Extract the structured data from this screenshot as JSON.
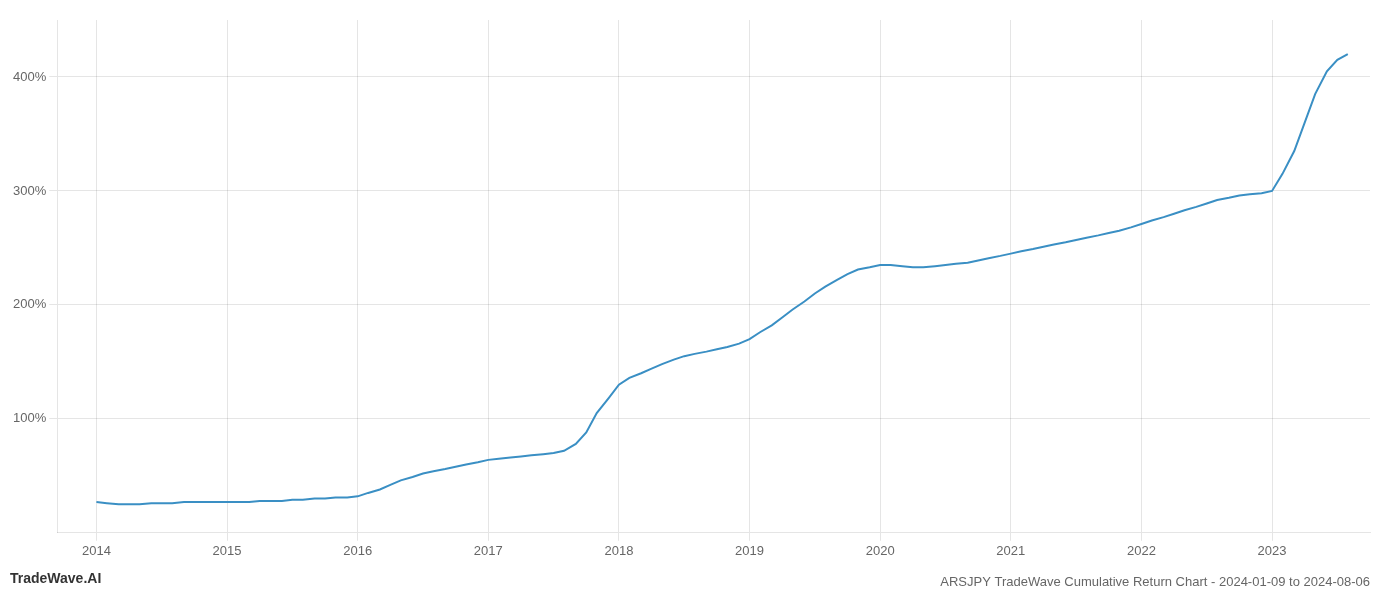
{
  "chart_data": {
    "type": "line",
    "title": "ARSJPY TradeWave Cumulative Return Chart - 2024-01-09 to 2024-08-06",
    "annotations": [
      "TradeWave.AI"
    ],
    "color": "#3a8fc4",
    "grid": true,
    "xlim": [
      2013.7,
      2023.75
    ],
    "xticks": [
      2014,
      2015,
      2016,
      2017,
      2018,
      2019,
      2020,
      2021,
      2022,
      2023
    ],
    "ylim": [
      0,
      450
    ],
    "yticks": [
      {
        "value": 100,
        "label": "100%"
      },
      {
        "value": 200,
        "label": "200%"
      },
      {
        "value": 300,
        "label": "300%"
      },
      {
        "value": 400,
        "label": "400%"
      }
    ],
    "x": [
      2014.0,
      2014.08,
      2014.17,
      2014.25,
      2014.33,
      2014.42,
      2014.5,
      2014.58,
      2014.67,
      2014.75,
      2014.83,
      2014.92,
      2015.0,
      2015.08,
      2015.17,
      2015.25,
      2015.33,
      2015.42,
      2015.5,
      2015.58,
      2015.67,
      2015.75,
      2015.83,
      2015.92,
      2016.0,
      2016.08,
      2016.17,
      2016.25,
      2016.33,
      2016.42,
      2016.5,
      2016.58,
      2016.67,
      2016.75,
      2016.83,
      2016.92,
      2017.0,
      2017.08,
      2017.17,
      2017.25,
      2017.33,
      2017.42,
      2017.5,
      2017.58,
      2017.67,
      2017.75,
      2017.83,
      2017.92,
      2018.0,
      2018.08,
      2018.17,
      2018.25,
      2018.33,
      2018.42,
      2018.5,
      2018.58,
      2018.67,
      2018.75,
      2018.83,
      2018.92,
      2019.0,
      2019.08,
      2019.17,
      2019.25,
      2019.33,
      2019.42,
      2019.5,
      2019.58,
      2019.67,
      2019.75,
      2019.83,
      2019.92,
      2020.0,
      2020.08,
      2020.17,
      2020.25,
      2020.33,
      2020.42,
      2020.5,
      2020.58,
      2020.67,
      2020.75,
      2020.83,
      2020.92,
      2021.0,
      2021.08,
      2021.17,
      2021.25,
      2021.33,
      2021.42,
      2021.5,
      2021.58,
      2021.67,
      2021.75,
      2021.83,
      2021.92,
      2022.0,
      2022.08,
      2022.17,
      2022.25,
      2022.33,
      2022.42,
      2022.5,
      2022.58,
      2022.67,
      2022.75,
      2022.83,
      2022.92,
      2023.0,
      2023.08,
      2023.17,
      2023.25,
      2023.33,
      2023.42,
      2023.5,
      2023.58
    ],
    "values": [
      27,
      26,
      25,
      25,
      25,
      26,
      26,
      26,
      27,
      27,
      27,
      27,
      27,
      27,
      27,
      28,
      28,
      28,
      29,
      29,
      30,
      30,
      31,
      31,
      32,
      35,
      38,
      42,
      46,
      49,
      52,
      54,
      56,
      58,
      60,
      62,
      64,
      65,
      66,
      67,
      68,
      69,
      70,
      72,
      78,
      88,
      105,
      118,
      130,
      136,
      140,
      144,
      148,
      152,
      155,
      157,
      159,
      161,
      163,
      166,
      170,
      176,
      182,
      189,
      196,
      203,
      210,
      216,
      222,
      227,
      231,
      233,
      235,
      235,
      234,
      233,
      233,
      234,
      235,
      236,
      237,
      239,
      241,
      243,
      245,
      247,
      249,
      251,
      253,
      255,
      257,
      259,
      261,
      263,
      265,
      268,
      271,
      274,
      277,
      280,
      283,
      286,
      289,
      292,
      294,
      296,
      297,
      298,
      300,
      315,
      335,
      360,
      385,
      405,
      415,
      420
    ]
  }
}
